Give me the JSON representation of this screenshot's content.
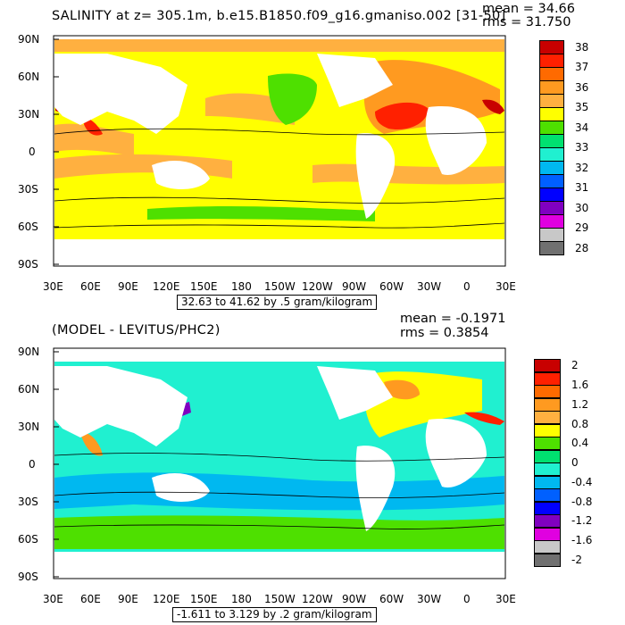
{
  "panels": [
    {
      "id": "top",
      "title": "SALINITY at z= 305.1m, b.e15.B1850.f09_g16.gmaniso.002 [31-50]",
      "mean_label": "mean = 34.66",
      "rms_label": "rms = 31.750",
      "range_label": "32.63 to 41.62 by .5 gram/kilogram",
      "lat_ticks": [
        "90N",
        "60N",
        "30N",
        "0",
        "30S",
        "60S",
        "90S"
      ],
      "lon_ticks": [
        "30E",
        "60E",
        "90E",
        "120E",
        "150E",
        "180",
        "150W",
        "120W",
        "90W",
        "60W",
        "30W",
        "0",
        "30E"
      ],
      "colorbar_labels": [
        "38",
        "37",
        "36",
        "35",
        "34",
        "33",
        "32",
        "31",
        "30",
        "29",
        "28"
      ],
      "colorbar_colors": [
        "#c80000",
        "#ff2000",
        "#ff6a00",
        "#ff9a20",
        "#ffb040",
        "#ffff00",
        "#4ee000",
        "#00e070",
        "#20f0d0",
        "#00b8f0",
        "#0060ff",
        "#0000ff",
        "#8000c0",
        "#e000e0",
        "#c8c8c8",
        "#707070"
      ]
    },
    {
      "id": "bottom",
      "title": "(MODEL - LEVITUS/PHC2)",
      "mean_label": "mean = -0.1971",
      "rms_label": "rms = 0.3854",
      "range_label": "-1.611 to 3.129 by .2 gram/kilogram",
      "lat_ticks": [
        "90N",
        "60N",
        "30N",
        "0",
        "30S",
        "60S",
        "90S"
      ],
      "lon_ticks": [
        "30E",
        "60E",
        "90E",
        "120E",
        "150E",
        "180",
        "150W",
        "120W",
        "90W",
        "60W",
        "30W",
        "0",
        "30E"
      ],
      "colorbar_labels": [
        "2",
        "1.6",
        "1.2",
        "0.8",
        "0.4",
        "0",
        "-0.4",
        "-0.8",
        "-1.2",
        "-1.6",
        "-2"
      ],
      "colorbar_colors": [
        "#c80000",
        "#ff2000",
        "#ff6a00",
        "#ff9a20",
        "#ffb040",
        "#ffff00",
        "#4ee000",
        "#00e070",
        "#20f0d0",
        "#00b8f0",
        "#0060ff",
        "#0000ff",
        "#8000c0",
        "#e000e0",
        "#c8c8c8",
        "#707070"
      ]
    }
  ]
}
